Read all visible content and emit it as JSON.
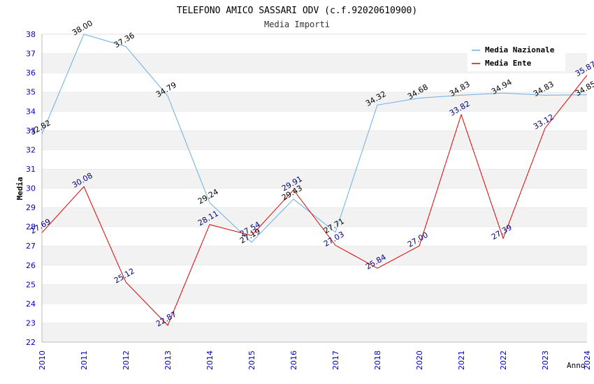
{
  "chart_data": {
    "type": "line",
    "title": "TELEFONO AMICO SASSARI ODV (c.f.92020610900)",
    "subtitle": "Media Importi",
    "xlabel": "Anno",
    "ylabel": "Media",
    "ylim": [
      22,
      38
    ],
    "yticks": [
      "22",
      "23",
      "24",
      "25",
      "26",
      "27",
      "28",
      "29",
      "30",
      "31",
      "32",
      "33",
      "34",
      "35",
      "36",
      "37",
      "38"
    ],
    "categories": [
      "2010",
      "2011",
      "2012",
      "2013",
      "2014",
      "2015",
      "2016",
      "2017",
      "2018",
      "2020",
      "2021",
      "2022",
      "2023",
      "2024"
    ],
    "grid": true,
    "legend_position": "top-right",
    "colors": {
      "nazionale": "#6aaee8",
      "ente": "#e00000",
      "nazionale_label": "#000000",
      "ente_label": "#000080",
      "tick": "#0000cc",
      "band": "#f2f2f2"
    },
    "series": [
      {
        "key": "nazionale",
        "name": "Media Nazionale",
        "values": [
          32.82,
          38.0,
          37.36,
          34.79,
          29.24,
          27.19,
          29.43,
          27.71,
          34.32,
          34.68,
          34.83,
          34.94,
          34.83,
          34.85
        ],
        "labels": [
          "32.82",
          "38.00",
          "37.36",
          "34.79",
          "29.24",
          "27.19",
          "29.43",
          "27.71",
          "34.32",
          "34.68",
          "34.83",
          "34.94",
          "34.83",
          "34.85"
        ]
      },
      {
        "key": "ente",
        "name": "Media Ente",
        "values": [
          27.69,
          30.08,
          25.12,
          22.87,
          28.11,
          27.54,
          29.91,
          27.03,
          25.84,
          27.0,
          33.82,
          27.39,
          33.12,
          35.87
        ],
        "labels": [
          "27.69",
          "30.08",
          "25.12",
          "22.87",
          "28.11",
          "27.54",
          "29.91",
          "27.03",
          "25.84",
          "27.00",
          "33.82",
          "27.39",
          "33.12",
          "35.87"
        ]
      }
    ]
  }
}
